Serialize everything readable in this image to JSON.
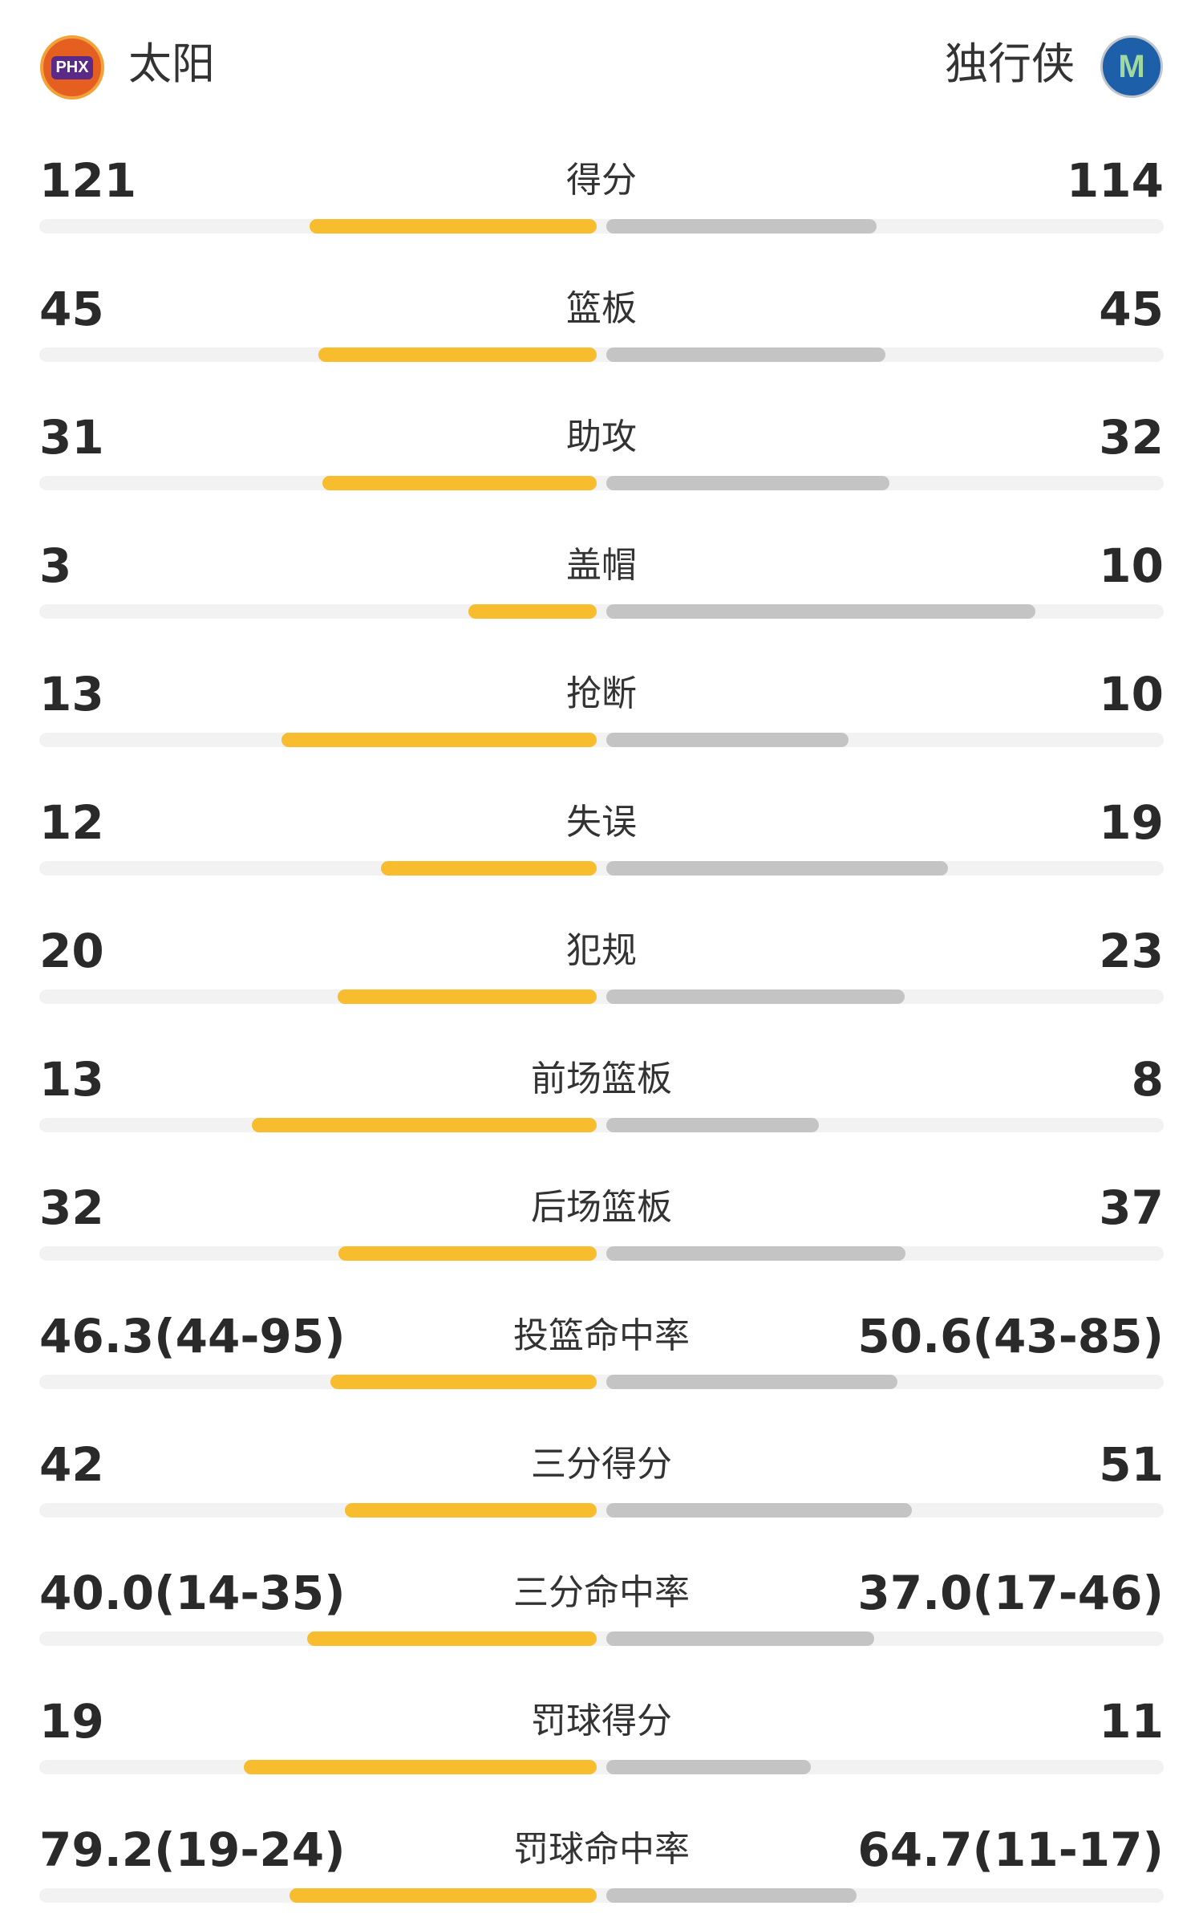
{
  "home": {
    "name": "太阳",
    "logo": "PHX"
  },
  "away": {
    "name": "独行侠",
    "logo": "M"
  },
  "rows": [
    {
      "label": "得分",
      "left": 121,
      "right": 114
    },
    {
      "label": "篮板",
      "left": 45,
      "right": 45
    },
    {
      "label": "助攻",
      "left": 31,
      "right": 32
    },
    {
      "label": "盖帽",
      "left": 3,
      "right": 10
    },
    {
      "label": "抢断",
      "left": 13,
      "right": 10
    },
    {
      "label": "失误",
      "left": 12,
      "right": 19
    },
    {
      "label": "犯规",
      "left": 20,
      "right": 23
    },
    {
      "label": "前场篮板",
      "left": 13,
      "right": 8
    },
    {
      "label": "后场篮板",
      "left": 32,
      "right": 37
    },
    {
      "label": "投篮命中率",
      "left": {
        "value": 46.3,
        "label": "46.3(44-95)"
      },
      "right": {
        "value": 50.6,
        "label": "50.6(43-85)"
      }
    },
    {
      "label": "三分得分",
      "left": 42,
      "right": 51
    },
    {
      "label": "三分命中率",
      "left": {
        "value": 40.0,
        "label": "40.0(14-35)"
      },
      "right": {
        "value": 37.0,
        "label": "37.0(17-46)"
      }
    },
    {
      "label": "罚球得分",
      "left": 19,
      "right": 11
    },
    {
      "label": "罚球命中率",
      "left": {
        "value": 79.2,
        "label": "79.2(19-24)"
      },
      "right": {
        "value": 64.7,
        "label": "64.7(11-17)"
      }
    }
  ]
}
